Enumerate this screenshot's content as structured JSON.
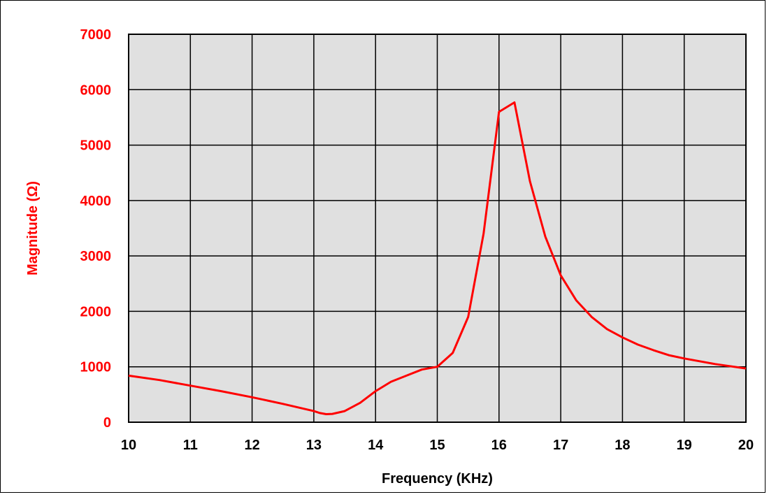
{
  "chart_data": {
    "type": "line",
    "title": "",
    "xlabel": "Frequency (KHz)",
    "ylabel": "Magnitude (Ω)",
    "xlim": [
      10,
      20
    ],
    "ylim": [
      0,
      7000
    ],
    "x_ticks": [
      10,
      11,
      12,
      13,
      14,
      15,
      16,
      17,
      18,
      19,
      20
    ],
    "y_ticks": [
      0,
      1000,
      2000,
      3000,
      4000,
      5000,
      6000,
      7000
    ],
    "x_tick_labels": [
      "10",
      "11",
      "12",
      "13",
      "14",
      "15",
      "16",
      "17",
      "18",
      "19",
      "20"
    ],
    "y_tick_labels": [
      "0",
      "1000",
      "2000",
      "3000",
      "4000",
      "5000",
      "6000",
      "7000"
    ],
    "grid": true,
    "legend": "none",
    "series": [
      {
        "x": [
          10,
          10.5,
          11,
          11.5,
          12,
          12.5,
          13,
          13.1,
          13.2,
          13.3,
          13.5,
          13.75,
          14,
          14.25,
          14.5,
          14.75,
          15,
          15.25,
          15.5,
          15.75,
          16,
          16.25,
          16.5,
          16.75,
          17,
          17.25,
          17.5,
          17.75,
          18,
          18.25,
          18.5,
          18.75,
          19,
          19.5,
          20
        ],
        "y": [
          840,
          760,
          660,
          560,
          450,
          330,
          200,
          165,
          145,
          150,
          200,
          350,
          560,
          730,
          840,
          950,
          1000,
          1250,
          1900,
          3400,
          5600,
          5770,
          4350,
          3350,
          2650,
          2200,
          1900,
          1680,
          1530,
          1400,
          1300,
          1210,
          1150,
          1050,
          970
        ]
      }
    ],
    "colors": {
      "line": "#ff0000",
      "text": "#ff0000",
      "x_text": "#000000",
      "plot_bg": "#e0e0e0",
      "grid": "#000000"
    }
  }
}
